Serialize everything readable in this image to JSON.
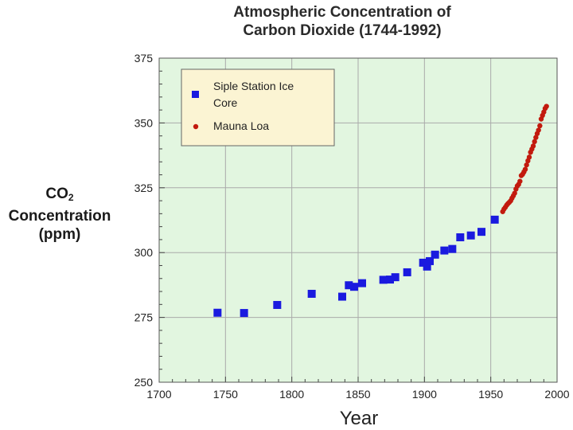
{
  "chart_data": {
    "type": "scatter",
    "title_line1": "Atmospheric Concentration of",
    "title_line2": "Carbon Dioxide (1744-1992)",
    "ylabel_main": "CO",
    "ylabel_sub": "2",
    "ylabel_line2": "Concentration",
    "ylabel_line3": "(ppm)",
    "xlabel": "Year",
    "xlim": [
      1700,
      2000
    ],
    "ylim": [
      250,
      375
    ],
    "xticks": [
      1700,
      1750,
      1800,
      1850,
      1900,
      1950,
      2000
    ],
    "yticks": [
      250,
      275,
      300,
      325,
      350,
      375
    ],
    "colors": {
      "plot_bg": "#e2f6e0",
      "grid": "#aaaaaa",
      "legend_bg": "#fbf4d3",
      "siple": "#1a1adf",
      "mauna": "#c21a0e"
    },
    "legend": {
      "siple_line1": "Siple Station Ice",
      "siple_line2": "Core",
      "mauna": "Mauna Loa"
    },
    "series": [
      {
        "name": "Siple Station Ice Core",
        "marker": "square",
        "points": [
          [
            1744,
            276.8
          ],
          [
            1764,
            276.7
          ],
          [
            1789,
            279.8
          ],
          [
            1815,
            284.1
          ],
          [
            1838,
            283.0
          ],
          [
            1843,
            287.4
          ],
          [
            1847,
            286.8
          ],
          [
            1853,
            288.2
          ],
          [
            1869,
            289.5
          ],
          [
            1874,
            289.6
          ],
          [
            1878,
            290.5
          ],
          [
            1887,
            292.4
          ],
          [
            1899,
            296.1
          ],
          [
            1902,
            294.6
          ],
          [
            1904,
            296.7
          ],
          [
            1908,
            299.2
          ],
          [
            1915,
            300.8
          ],
          [
            1921,
            301.4
          ],
          [
            1927,
            305.9
          ],
          [
            1935,
            306.6
          ],
          [
            1943,
            308.0
          ],
          [
            1953,
            312.7
          ]
        ]
      },
      {
        "name": "Mauna Loa",
        "marker": "circle",
        "points": [
          [
            1959,
            315.8
          ],
          [
            1960,
            316.8
          ],
          [
            1961,
            317.5
          ],
          [
            1962,
            318.3
          ],
          [
            1963,
            318.9
          ],
          [
            1964,
            319.4
          ],
          [
            1965,
            320.0
          ],
          [
            1966,
            321.0
          ],
          [
            1967,
            321.9
          ],
          [
            1968,
            322.9
          ],
          [
            1969,
            324.5
          ],
          [
            1970,
            325.7
          ],
          [
            1971,
            326.3
          ],
          [
            1972,
            327.5
          ],
          [
            1973,
            329.7
          ],
          [
            1974,
            330.2
          ],
          [
            1975,
            331.1
          ],
          [
            1976,
            332.1
          ],
          [
            1977,
            333.8
          ],
          [
            1978,
            335.4
          ],
          [
            1979,
            336.8
          ],
          [
            1980,
            338.7
          ],
          [
            1981,
            339.9
          ],
          [
            1982,
            341.1
          ],
          [
            1983,
            342.8
          ],
          [
            1984,
            344.4
          ],
          [
            1985,
            345.9
          ],
          [
            1986,
            347.2
          ],
          [
            1987,
            348.9
          ],
          [
            1988,
            351.5
          ],
          [
            1989,
            352.9
          ],
          [
            1990,
            354.2
          ],
          [
            1991,
            355.6
          ],
          [
            1992,
            356.4
          ]
        ]
      }
    ]
  }
}
